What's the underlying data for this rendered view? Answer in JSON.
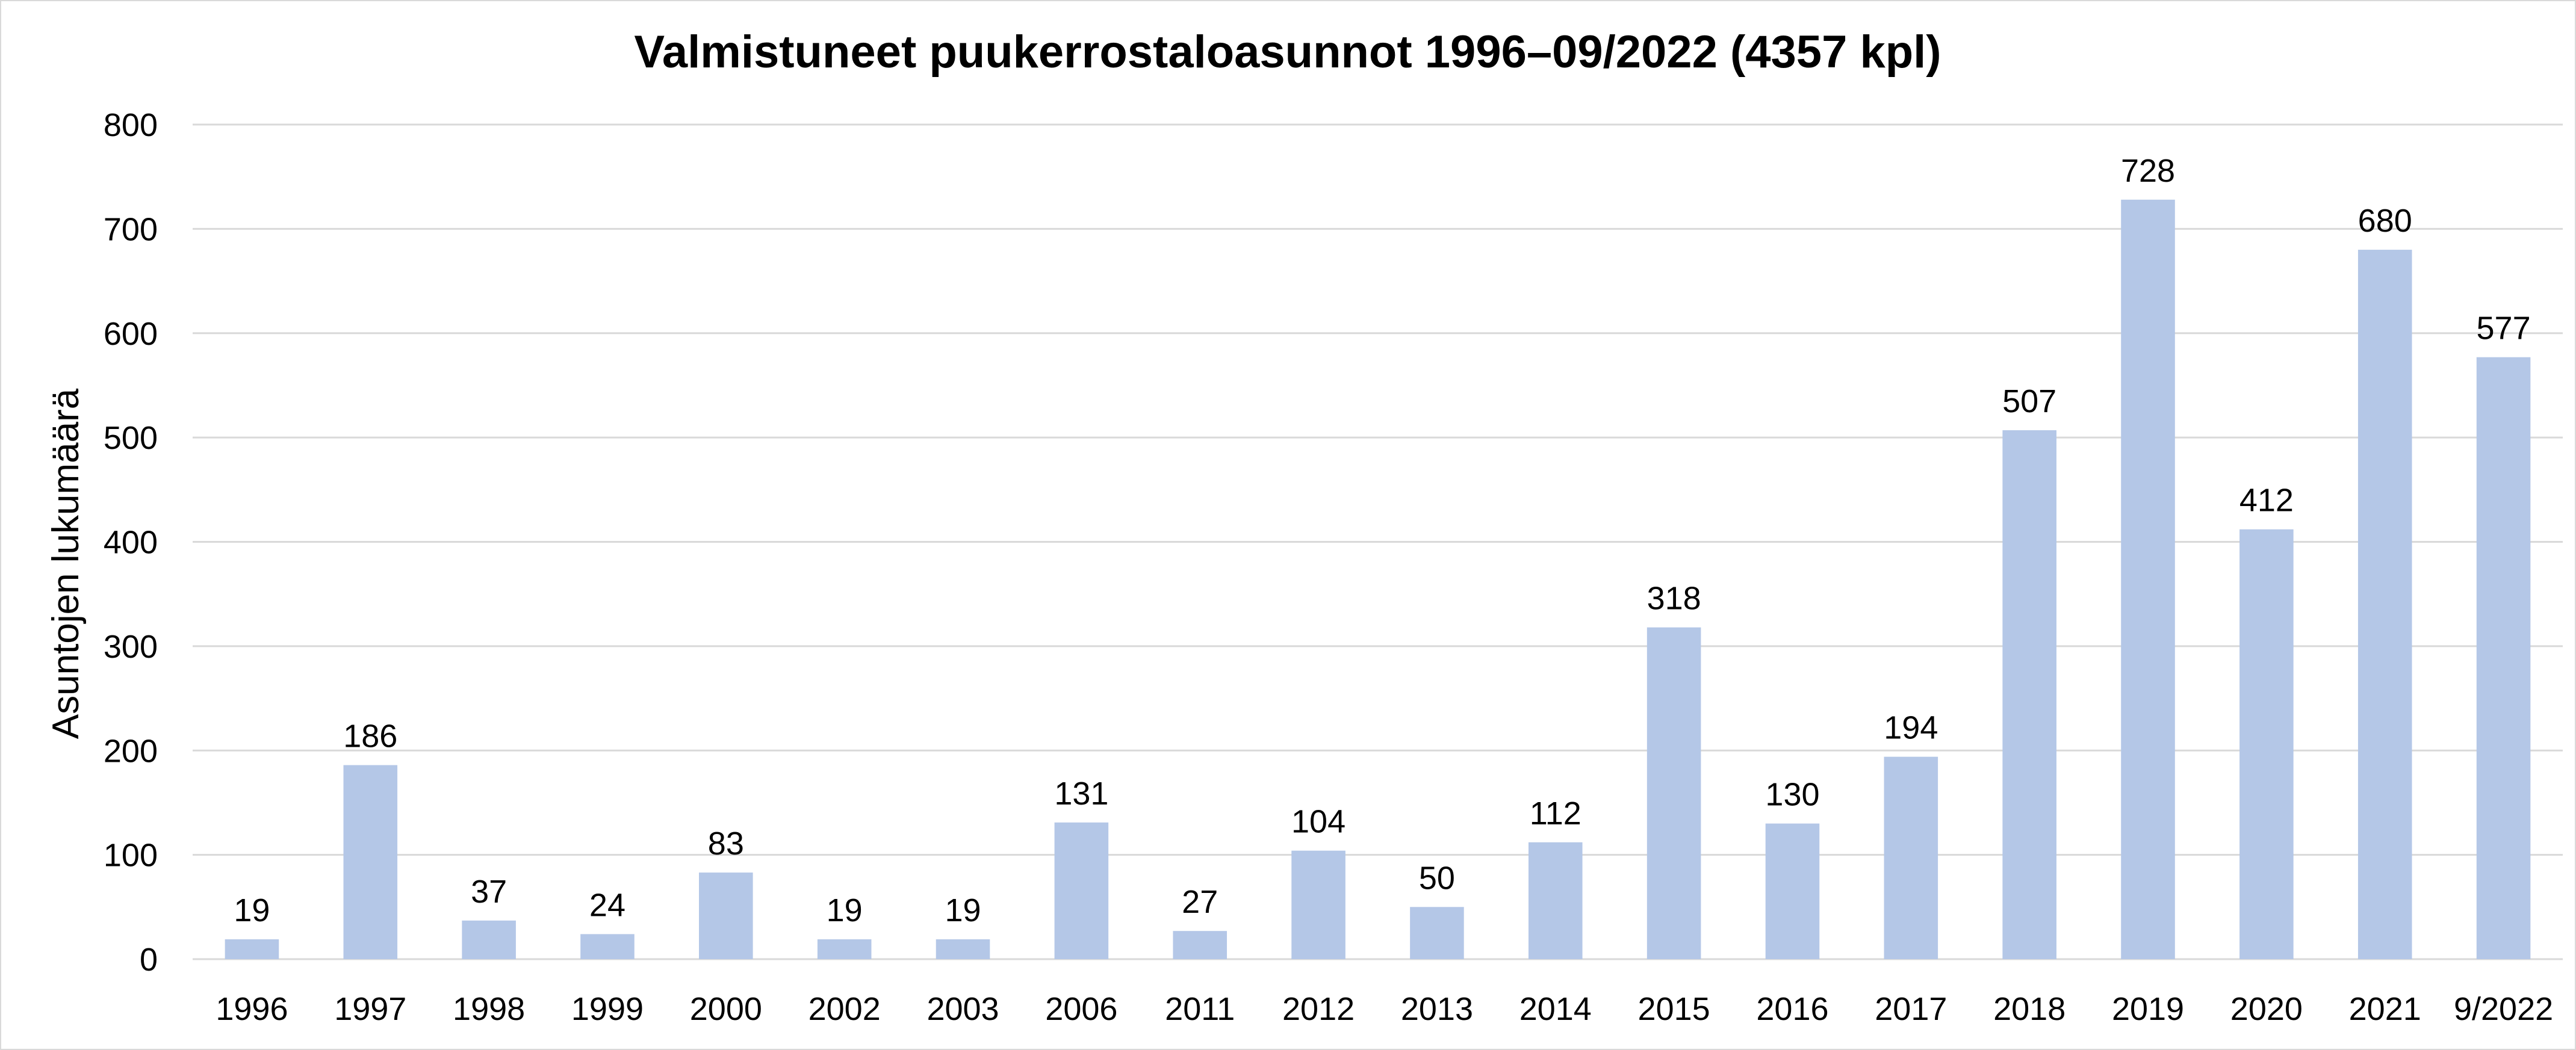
{
  "chart_data": {
    "type": "bar",
    "title": "Valmistuneet puukerrostaloasunnot 1996–09/2022 (4357 kpl)",
    "xlabel": "",
    "ylabel": "Asuntojen lukumäärä",
    "ylim": [
      0,
      800
    ],
    "yticks": [
      0,
      100,
      200,
      300,
      400,
      500,
      600,
      700,
      800
    ],
    "grid": true,
    "legend": "none",
    "bar_color": "#b4c7e7",
    "grid_color": "#d9d9d9",
    "categories": [
      "1996",
      "1997",
      "1998",
      "1999",
      "2000",
      "2002",
      "2003",
      "2006",
      "2011",
      "2012",
      "2013",
      "2014",
      "2015",
      "2016",
      "2017",
      "2018",
      "2019",
      "2020",
      "2021",
      "9/2022"
    ],
    "values": [
      19,
      186,
      37,
      24,
      83,
      19,
      19,
      131,
      27,
      104,
      50,
      112,
      318,
      130,
      194,
      507,
      728,
      412,
      680,
      577
    ],
    "data_labels": [
      "19",
      "186",
      "37",
      "24",
      "83",
      "19",
      "19",
      "131",
      "27",
      "104",
      "50",
      "112",
      "318",
      "130",
      "194",
      "507",
      "728",
      "412",
      "680",
      "577"
    ]
  }
}
